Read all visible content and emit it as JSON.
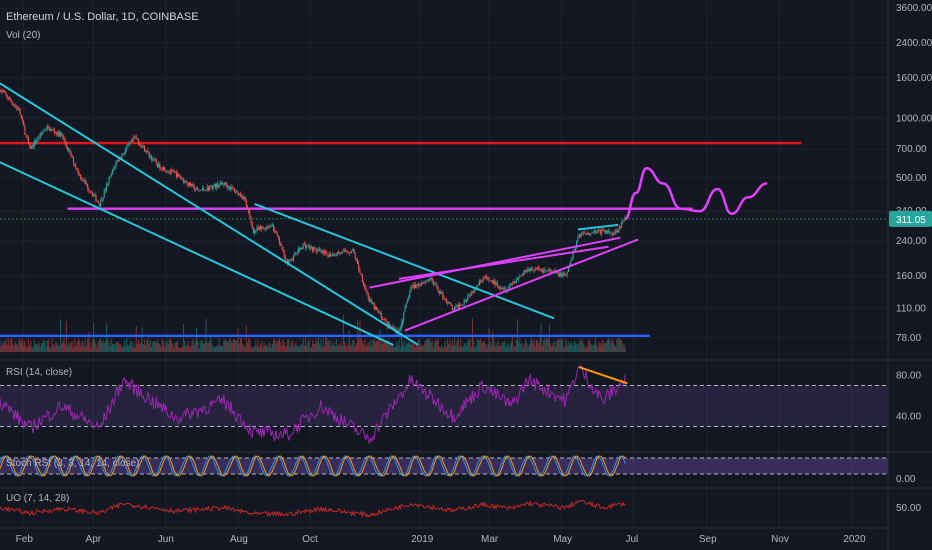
{
  "header": {
    "title": "Ethereum / U.S. Dollar, 1D, COINBASE",
    "volume_label": "Vol (20)"
  },
  "colors": {
    "background": "#131722",
    "channel": "#26c6da",
    "wedge": "#e040fb",
    "resistance": "#e8141c",
    "support": "#2962ff",
    "divergence": "#ff9800",
    "rsi_line": "#9c27b0",
    "stoch_k": "#2196f3",
    "stoch_d": "#ff9800",
    "uo_line": "#c62828",
    "price_tag": "#26a69a"
  },
  "chart_data": {
    "type": "candlestick",
    "symbol": "ETHUSD",
    "price_axis": {
      "scale": "log",
      "ticks": [
        "3600.00",
        "2400.00",
        "1600.00",
        "1000.00",
        "700.00",
        "500.00",
        "340.00",
        "240.00",
        "160.00",
        "110.00",
        "78.00"
      ],
      "tick_values": [
        3600,
        2400,
        1600,
        1000,
        700,
        500,
        340,
        240,
        160,
        110,
        78
      ]
    },
    "last_price": "311.05",
    "time_axis": {
      "ticks": [
        "Feb",
        "Apr",
        "Jun",
        "Aug",
        "Oct",
        "2019",
        "Mar",
        "May",
        "Jul",
        "Sep",
        "Nov",
        "2020"
      ],
      "range": [
        "2018-01-12",
        "2020-02-01"
      ]
    },
    "price_path": [
      [
        "2018-01-12",
        1400
      ],
      [
        "2018-01-28",
        1100
      ],
      [
        "2018-02-06",
        700
      ],
      [
        "2018-02-20",
        900
      ],
      [
        "2018-03-05",
        820
      ],
      [
        "2018-03-20",
        520
      ],
      [
        "2018-04-06",
        370
      ],
      [
        "2018-04-20",
        600
      ],
      [
        "2018-05-06",
        800
      ],
      [
        "2018-05-25",
        580
      ],
      [
        "2018-06-10",
        520
      ],
      [
        "2018-06-28",
        430
      ],
      [
        "2018-07-20",
        470
      ],
      [
        "2018-08-06",
        400
      ],
      [
        "2018-08-14",
        270
      ],
      [
        "2018-08-30",
        290
      ],
      [
        "2018-09-12",
        185
      ],
      [
        "2018-09-25",
        230
      ],
      [
        "2018-10-15",
        205
      ],
      [
        "2018-11-06",
        215
      ],
      [
        "2018-11-20",
        120
      ],
      [
        "2018-12-06",
        90
      ],
      [
        "2018-12-15",
        84
      ],
      [
        "2018-12-25",
        140
      ],
      [
        "2019-01-10",
        155
      ],
      [
        "2019-01-30",
        108
      ],
      [
        "2019-02-08",
        120
      ],
      [
        "2019-02-24",
        158
      ],
      [
        "2019-03-15",
        138
      ],
      [
        "2019-04-03",
        175
      ],
      [
        "2019-04-20",
        170
      ],
      [
        "2019-05-05",
        160
      ],
      [
        "2019-05-16",
        260
      ],
      [
        "2019-05-30",
        270
      ],
      [
        "2019-06-15",
        265
      ],
      [
        "2019-06-24",
        311.05
      ]
    ],
    "projection": [
      [
        "2019-06-24",
        311
      ],
      [
        "2019-07-03",
        420
      ],
      [
        "2019-07-12",
        560
      ],
      [
        "2019-07-26",
        470
      ],
      [
        "2019-08-10",
        350
      ],
      [
        "2019-08-26",
        340
      ],
      [
        "2019-09-10",
        440
      ],
      [
        "2019-09-22",
        330
      ],
      [
        "2019-10-06",
        400
      ],
      [
        "2019-10-22",
        470
      ]
    ],
    "levels": [
      {
        "value": 750,
        "color": "#e8141c",
        "from": "2018-01-12",
        "to": "2019-11-20"
      },
      {
        "value": 350,
        "color": "#e040fb",
        "from": "2018-03-10",
        "to": "2019-08-20"
      },
      {
        "value": 80,
        "color": "#2962ff",
        "from": "2018-01-12",
        "to": "2019-07-15"
      },
      {
        "value": 311.05,
        "color": "#2ea043",
        "from": "2018-01-12",
        "to": "2020-02-01"
      }
    ],
    "trendlines": [
      {
        "color": "#26c6da",
        "from": [
          "2018-01-12",
          1500
        ],
        "to": [
          "2018-12-31",
          72
        ]
      },
      {
        "color": "#26c6da",
        "from": [
          "2018-01-12",
          600
        ],
        "to": [
          "2018-12-10",
          72
        ]
      },
      {
        "color": "#26c6da",
        "from": [
          "2018-08-15",
          370
        ],
        "to": [
          "2019-04-25",
          98
        ]
      },
      {
        "color": "#e040fb",
        "from": [
          "2018-11-20",
          140
        ],
        "to": [
          "2019-06-20",
          250
        ]
      },
      {
        "color": "#e040fb",
        "from": [
          "2018-12-20",
          85
        ],
        "to": [
          "2019-07-05",
          245
        ]
      },
      {
        "color": "#e040fb",
        "from": [
          "2018-12-15",
          155
        ],
        "to": [
          "2019-06-10",
          225
        ]
      },
      {
        "color": "#26c6da",
        "from": [
          "2019-05-15",
          275
        ],
        "to": [
          "2019-06-18",
          290
        ]
      }
    ],
    "indicators": {
      "rsi": {
        "label": "RSI (14, close)",
        "ticks": [
          "80.00",
          "40.00"
        ],
        "tick_values": [
          80,
          40
        ],
        "bands": [
          70,
          30
        ],
        "range": [
          10,
          90
        ],
        "values": [
          [
            "2018-01-12",
            55
          ],
          [
            "2018-02-06",
            28
          ],
          [
            "2018-03-05",
            50
          ],
          [
            "2018-04-06",
            28
          ],
          [
            "2018-04-26",
            75
          ],
          [
            "2018-06-10",
            38
          ],
          [
            "2018-07-20",
            55
          ],
          [
            "2018-08-14",
            24
          ],
          [
            "2018-09-12",
            22
          ],
          [
            "2018-10-10",
            50
          ],
          [
            "2018-11-20",
            18
          ],
          [
            "2018-12-25",
            75
          ],
          [
            "2019-01-30",
            40
          ],
          [
            "2019-02-24",
            70
          ],
          [
            "2019-03-20",
            50
          ],
          [
            "2019-04-03",
            76
          ],
          [
            "2019-05-05",
            55
          ],
          [
            "2019-05-16",
            88
          ],
          [
            "2019-06-05",
            55
          ],
          [
            "2019-06-24",
            76
          ]
        ],
        "divergence": {
          "color": "#ff9800",
          "from": [
            "2019-05-16",
            88
          ],
          "to": [
            "2019-06-26",
            72
          ]
        }
      },
      "stoch": {
        "label": "Stoch RSI (3, 3, 14, 14, close)",
        "ticks": [
          "0.00"
        ],
        "tick_values": [
          0
        ],
        "bands": [
          80,
          20
        ]
      },
      "uo": {
        "label": "UO (7, 14, 28)",
        "ticks": [
          "50.00"
        ],
        "tick_values": [
          50
        ]
      }
    }
  }
}
